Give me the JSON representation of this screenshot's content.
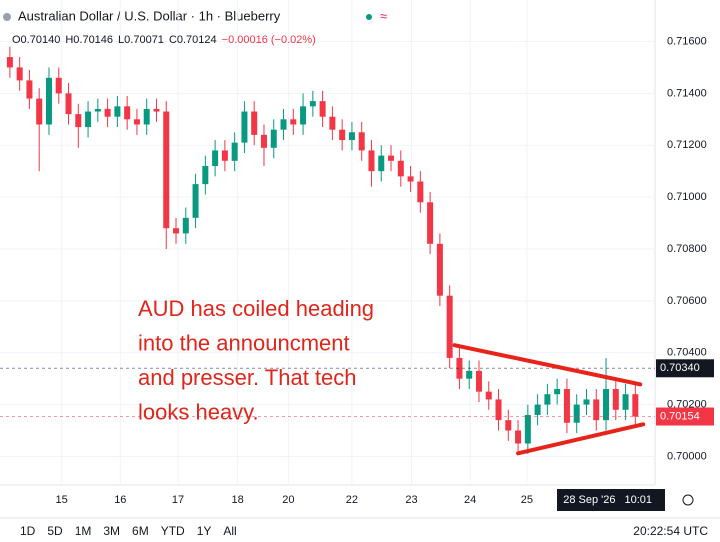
{
  "chart_data": {
    "type": "candlestick",
    "title": "Australian Dollar / U.S. Dollar · 1h · Blueberry",
    "ohlc_legend": [
      "O0.70140",
      "H0.70146",
      "L0.70071",
      "C0.70124",
      "−0.00016 (−0.02%)"
    ],
    "open": [
      0.7154,
      0.715,
      0.7145,
      0.7138,
      0.7128,
      0.7146,
      0.714,
      0.7132,
      0.7127,
      0.7133,
      0.7134,
      0.7131,
      0.7135,
      0.713,
      0.7128,
      0.7134,
      0.7133,
      0.7088,
      0.7086,
      0.7092,
      0.7105,
      0.7112,
      0.7118,
      0.7114,
      0.7121,
      0.7133,
      0.7124,
      0.7119,
      0.7126,
      0.713,
      0.7128,
      0.7135,
      0.7137,
      0.7131,
      0.7126,
      0.7122,
      0.7125,
      0.7118,
      0.711,
      0.7116,
      0.7114,
      0.7108,
      0.7106,
      0.7098,
      0.7082,
      0.7062,
      0.7038,
      0.703,
      0.7033,
      0.7025,
      0.7022,
      0.7014,
      0.701,
      0.7005,
      0.7016,
      0.702,
      0.7024,
      0.7026,
      0.7013,
      0.702,
      0.7022,
      0.7014,
      0.7026,
      0.7018,
      0.7024
    ],
    "high": [
      0.7158,
      0.7154,
      0.7149,
      0.7142,
      0.715,
      0.715,
      0.7144,
      0.7136,
      0.7137,
      0.7138,
      0.7138,
      0.7139,
      0.7139,
      0.7134,
      0.7138,
      0.7138,
      0.7137,
      0.7092,
      0.7096,
      0.7109,
      0.7116,
      0.7122,
      0.7122,
      0.7125,
      0.7137,
      0.7137,
      0.7128,
      0.713,
      0.7134,
      0.7134,
      0.714,
      0.7141,
      0.7141,
      0.7135,
      0.713,
      0.7129,
      0.7129,
      0.7122,
      0.712,
      0.712,
      0.7118,
      0.7112,
      0.711,
      0.7102,
      0.7086,
      0.7066,
      0.7042,
      0.7037,
      0.7037,
      0.7029,
      0.7026,
      0.7018,
      0.7014,
      0.702,
      0.7024,
      0.7028,
      0.703,
      0.703,
      0.7024,
      0.7026,
      0.7026,
      0.7038,
      0.703,
      0.7028,
      0.7028
    ],
    "low": [
      0.7146,
      0.7141,
      0.7134,
      0.711,
      0.7124,
      0.7136,
      0.7128,
      0.7119,
      0.7123,
      0.7129,
      0.7127,
      0.7127,
      0.7126,
      0.7124,
      0.7124,
      0.7129,
      0.708,
      0.7082,
      0.7082,
      0.7088,
      0.7101,
      0.7108,
      0.711,
      0.711,
      0.7117,
      0.712,
      0.7112,
      0.7115,
      0.7122,
      0.7124,
      0.7124,
      0.7131,
      0.7127,
      0.7122,
      0.7118,
      0.7118,
      0.7114,
      0.7104,
      0.7106,
      0.711,
      0.7104,
      0.7102,
      0.7094,
      0.7078,
      0.7058,
      0.7034,
      0.7026,
      0.7026,
      0.7021,
      0.7018,
      0.701,
      0.7006,
      0.7002,
      0.7001,
      0.7012,
      0.7016,
      0.702,
      0.7009,
      0.7009,
      0.7016,
      0.701,
      0.701,
      0.7014,
      0.7014,
      0.7012
    ],
    "close": [
      0.715,
      0.7145,
      0.7138,
      0.7128,
      0.7146,
      0.714,
      0.7132,
      0.7127,
      0.7133,
      0.7134,
      0.7131,
      0.7135,
      0.713,
      0.7128,
      0.7134,
      0.7133,
      0.7088,
      0.7086,
      0.7092,
      0.7105,
      0.7112,
      0.7118,
      0.7114,
      0.7121,
      0.7133,
      0.7124,
      0.7119,
      0.7126,
      0.713,
      0.7128,
      0.7135,
      0.7137,
      0.7131,
      0.7126,
      0.7122,
      0.7125,
      0.7118,
      0.711,
      0.7116,
      0.7114,
      0.7108,
      0.7106,
      0.7098,
      0.7082,
      0.7062,
      0.7038,
      0.703,
      0.7033,
      0.7025,
      0.7022,
      0.7014,
      0.701,
      0.7005,
      0.7016,
      0.702,
      0.7024,
      0.7026,
      0.7013,
      0.702,
      0.7022,
      0.7014,
      0.7026,
      0.7018,
      0.7024,
      0.70154
    ],
    "up_color": "#089981",
    "down_color": "#f23645",
    "xlim": [
      -0.5,
      65.5
    ],
    "xticks": [
      {
        "value": 5.3,
        "label": "15"
      },
      {
        "value": 11.3,
        "label": "16"
      },
      {
        "value": 17.2,
        "label": "17"
      },
      {
        "value": 23.3,
        "label": "18"
      },
      {
        "value": 28.5,
        "label": "20"
      },
      {
        "value": 35.0,
        "label": "22"
      },
      {
        "value": 41.1,
        "label": "23"
      },
      {
        "value": 47.1,
        "label": "24"
      },
      {
        "value": 52.9,
        "label": "25"
      },
      {
        "value": 59.3,
        "label": "28 Sep '26"
      },
      {
        "value": 64.3,
        "label": "10:01"
      }
    ],
    "ylim": [
      0.6989,
      0.7176
    ],
    "yticks": [
      {
        "value": 0.7,
        "label": "0.70000"
      },
      {
        "value": 0.702,
        "label": "0.70200"
      },
      {
        "value": 0.704,
        "label": "0.70400"
      },
      {
        "value": 0.706,
        "label": "0.70600"
      },
      {
        "value": 0.708,
        "label": "0.70800"
      },
      {
        "value": 0.71,
        "label": "0.71000"
      },
      {
        "value": 0.712,
        "label": "0.71200"
      },
      {
        "value": 0.714,
        "label": "0.71400"
      },
      {
        "value": 0.716,
        "label": "0.71600"
      }
    ],
    "price_labels": [
      {
        "value": 0.7034,
        "label": "0.70340",
        "color": "#131722"
      },
      {
        "value": 0.70154,
        "label": "0.70154",
        "color": "#f23645"
      }
    ],
    "trendlines": [
      {
        "x": [
          45.5,
          64.5
        ],
        "y": [
          0.70429,
          0.70278
        ]
      },
      {
        "x": [
          52.0,
          64.8
        ],
        "y": [
          0.70012,
          0.70124
        ]
      }
    ],
    "trendline_color": "#e8231a",
    "annotation": [
      "AUD has coiled heading",
      "into the announcment",
      "and presser. That tech",
      "looks heavy."
    ],
    "timeframes": [
      "1D",
      "5D",
      "1M",
      "3M",
      "6M",
      "YTD",
      "1Y",
      "All"
    ],
    "clock": "20:22:54 UTC",
    "grid": true
  }
}
